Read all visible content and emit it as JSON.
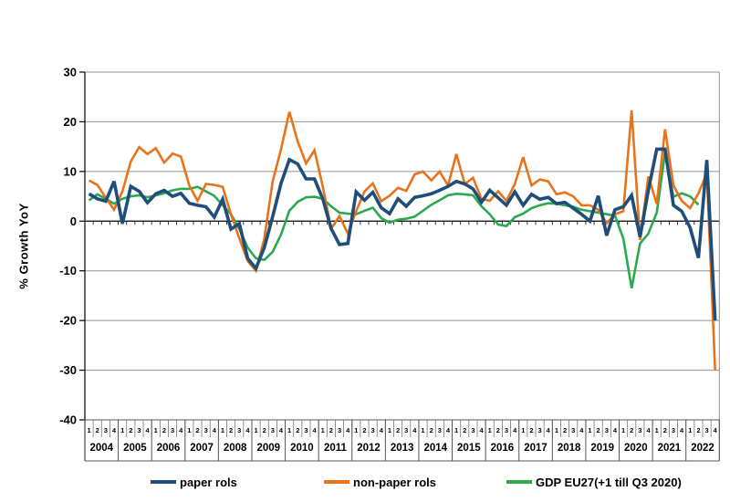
{
  "chart_data": {
    "type": "line",
    "title": "",
    "ylabel": "% Growth YoY",
    "ylim": [
      -40,
      30
    ],
    "ytick_step": 10,
    "grid": "horizontal",
    "legend_position": "bottom",
    "x_unit": "quarter",
    "quarter_labels": [
      "1",
      "2",
      "3",
      "4"
    ],
    "years": [
      "2004",
      "2005",
      "2006",
      "2007",
      "2008",
      "2009",
      "2010",
      "2011",
      "2012",
      "2013",
      "2014",
      "2015",
      "2016",
      "2017",
      "2018",
      "2019",
      "2020",
      "2021",
      "2022"
    ],
    "series": [
      {
        "name": "paper rols",
        "color": "#1F4E79",
        "width": 3.6,
        "values": [
          5.5,
          4.5,
          4.0,
          8.0,
          -0.5,
          7.0,
          6.0,
          3.7,
          5.5,
          6.2,
          5.0,
          5.6,
          3.6,
          3.2,
          2.9,
          0.8,
          4.4,
          -1.6,
          -0.5,
          -7.5,
          -9.5,
          -5.3,
          0.9,
          7.6,
          12.4,
          11.5,
          8.5,
          8.5,
          4.5,
          -1.5,
          -4.7,
          -4.5,
          5.9,
          4.2,
          5.8,
          2.7,
          1.5,
          4.5,
          3.0,
          4.8,
          5.1,
          5.5,
          6.2,
          7.0,
          8.0,
          7.5,
          6.5,
          3.8,
          6.2,
          4.7,
          3.2,
          5.9,
          3.2,
          5.4,
          4.4,
          4.8,
          3.5,
          3.8,
          2.6,
          1.4,
          0.0,
          5.1,
          -2.9,
          2.3,
          2.9,
          5.2,
          -3.2,
          6.2,
          14.5,
          14.5,
          3.2,
          2.0,
          -1.3,
          -7.4,
          12.3,
          -20.0
        ]
      },
      {
        "name": "non-paper rols",
        "color": "#E8731A",
        "width": 2.6,
        "values": [
          8.2,
          7.3,
          4.7,
          2.3,
          6.0,
          12.0,
          14.9,
          13.5,
          14.7,
          11.8,
          13.6,
          13.0,
          7.2,
          4.1,
          7.5,
          7.3,
          6.9,
          1.4,
          -3.5,
          -8.0,
          -10.0,
          -3.5,
          8.0,
          14.5,
          22.0,
          16.0,
          11.6,
          14.3,
          7.0,
          -1.5,
          1.0,
          -2.5,
          2.0,
          6.0,
          7.6,
          4.0,
          5.1,
          6.7,
          6.1,
          9.4,
          10.0,
          8.2,
          10.0,
          7.2,
          13.5,
          7.5,
          8.7,
          4.5,
          4.1,
          6.0,
          4.1,
          7.5,
          12.9,
          7.2,
          8.4,
          8.0,
          5.4,
          5.8,
          5.0,
          3.2,
          3.2,
          2.3,
          -0.4,
          1.4,
          2.0,
          22.3,
          -3.8,
          9.0,
          3.5,
          18.5,
          7.2,
          4.1,
          2.6,
          5.6,
          9.6,
          -30.0
        ]
      },
      {
        "name": "GDP EU27(+1 till Q3 2020)",
        "color": "#2BA94F",
        "width": 2.6,
        "values": [
          4.2,
          5.4,
          4.5,
          3.5,
          4.5,
          5.0,
          5.2,
          4.8,
          5.2,
          5.6,
          6.2,
          6.5,
          6.5,
          6.9,
          6.0,
          5.1,
          3.2,
          1.4,
          -1.6,
          -5.3,
          -7.5,
          -7.8,
          -6.2,
          -2.7,
          2.1,
          3.9,
          4.8,
          4.9,
          4.5,
          3.0,
          1.7,
          1.5,
          1.4,
          2.1,
          2.7,
          0.6,
          -0.3,
          0.3,
          0.5,
          0.9,
          2.1,
          3.3,
          4.2,
          5.2,
          5.5,
          5.4,
          5.2,
          3.0,
          1.4,
          -0.7,
          -1.0,
          0.8,
          1.5,
          2.6,
          3.2,
          3.6,
          3.5,
          3.2,
          2.9,
          2.3,
          2.0,
          1.7,
          1.4,
          1.1,
          -3.5,
          -13.5,
          -4.5,
          -2.5,
          1.7,
          13.8,
          4.9,
          5.6,
          5.0,
          3.3,
          null,
          null
        ]
      }
    ],
    "axis_tick_labels": [
      "30",
      "20",
      "10",
      "0",
      "-10",
      "-20",
      "-30",
      "-40"
    ]
  }
}
